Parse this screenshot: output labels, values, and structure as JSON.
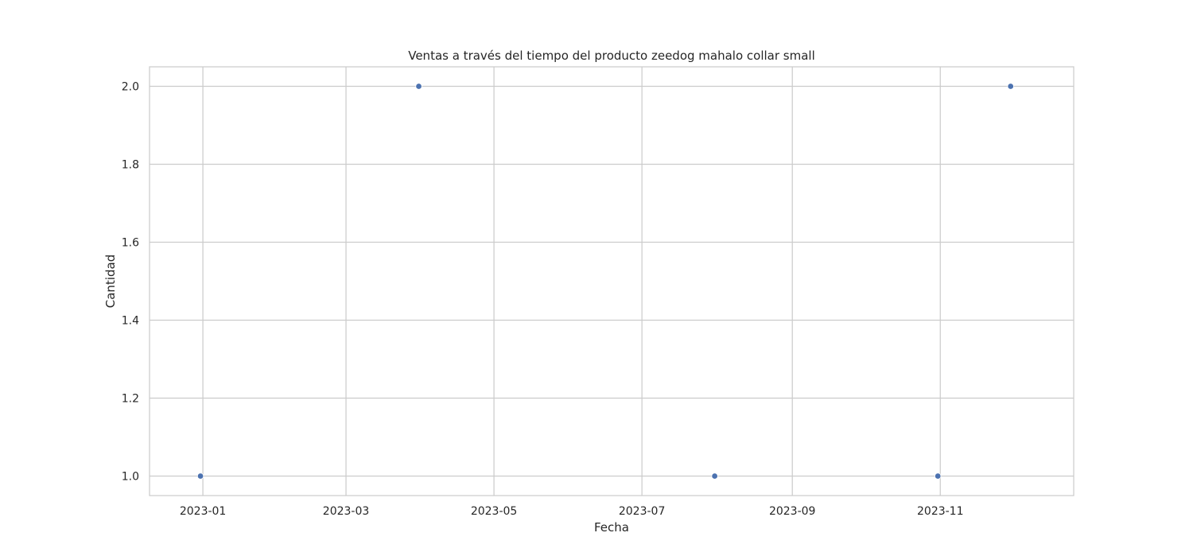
{
  "chart_data": {
    "type": "scatter",
    "title": "Ventas a través del tiempo del producto zeedog mahalo collar small",
    "xlabel": "Fecha",
    "ylabel": "Cantidad",
    "x_is_date": true,
    "xlim": [
      "2022-12-10",
      "2023-12-26"
    ],
    "ylim": [
      0.95,
      2.05
    ],
    "x_ticks": [
      "2023-01",
      "2023-03",
      "2023-05",
      "2023-07",
      "2023-09",
      "2023-11"
    ],
    "y_ticks": [
      1.0,
      1.2,
      1.4,
      1.6,
      1.8,
      2.0
    ],
    "y_tick_labels": [
      "1.0",
      "1.2",
      "1.4",
      "1.6",
      "1.8",
      "2.0"
    ],
    "grid": true,
    "legend": false,
    "marker_color": "#4C72B0",
    "grid_color": "#cccccc",
    "points": [
      {
        "x": "2022-12-31",
        "y": 1
      },
      {
        "x": "2023-03-31",
        "y": 2
      },
      {
        "x": "2023-07-31",
        "y": 1
      },
      {
        "x": "2023-10-31",
        "y": 1
      },
      {
        "x": "2023-11-30",
        "y": 2
      }
    ]
  }
}
